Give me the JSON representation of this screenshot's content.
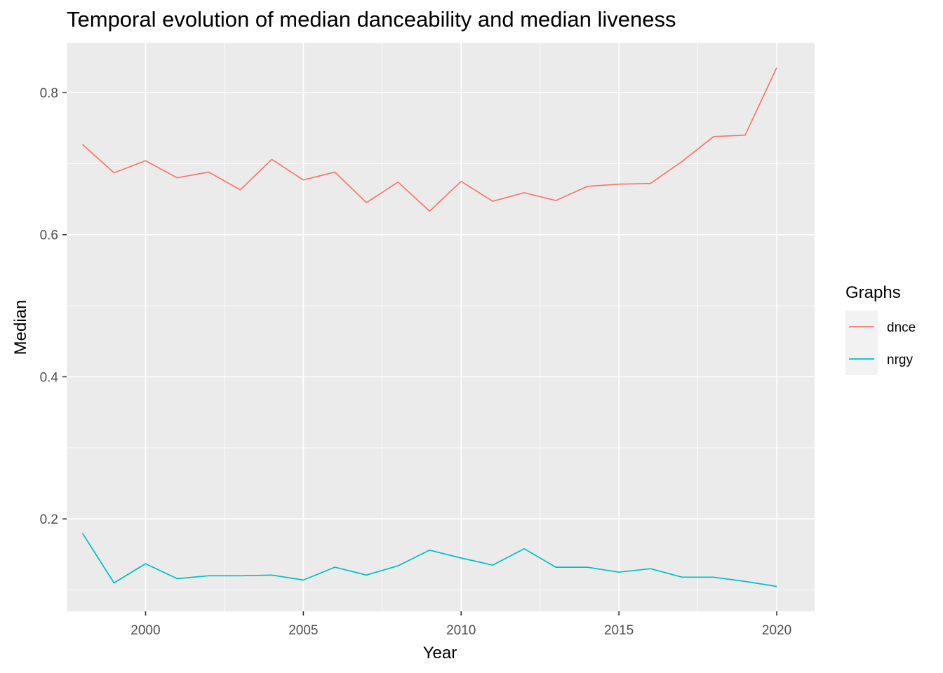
{
  "chart_data": {
    "type": "line",
    "title": "Temporal evolution of median danceability and median liveness",
    "xlabel": "Year",
    "ylabel": "Median",
    "xlim": [
      1997.5,
      2021.2
    ],
    "ylim": [
      0.07,
      0.87
    ],
    "x_major_ticks": [
      2000,
      2005,
      2010,
      2015,
      2020
    ],
    "x_minor_ticks": [
      1997.5,
      2002.5,
      2007.5,
      2012.5,
      2017.5
    ],
    "y_major_ticks": [
      0.2,
      0.4,
      0.6,
      0.8
    ],
    "y_minor_ticks": [
      0.1,
      0.3,
      0.5,
      0.7
    ],
    "x_tick_labels": [
      "2000",
      "2005",
      "2010",
      "2015",
      "2020"
    ],
    "y_tick_labels": [
      "0.2",
      "0.4",
      "0.6",
      "0.8"
    ],
    "grid": true,
    "legend_position": "right",
    "legend_title": "Graphs",
    "x": [
      1998,
      1999,
      2000,
      2001,
      2002,
      2003,
      2004,
      2005,
      2006,
      2007,
      2008,
      2009,
      2010,
      2011,
      2012,
      2013,
      2014,
      2015,
      2016,
      2017,
      2018,
      2019,
      2020
    ],
    "series": [
      {
        "name": "dnce",
        "color": "#F8766D",
        "values": [
          0.727,
          0.687,
          0.704,
          0.68,
          0.688,
          0.663,
          0.706,
          0.677,
          0.688,
          0.645,
          0.674,
          0.633,
          0.675,
          0.647,
          0.659,
          0.648,
          0.668,
          0.671,
          0.672,
          0.703,
          0.738,
          0.74,
          0.835
        ]
      },
      {
        "name": "nrgy",
        "color": "#00BFC4",
        "values": [
          0.18,
          0.11,
          0.137,
          0.116,
          0.12,
          0.12,
          0.121,
          0.114,
          0.132,
          0.121,
          0.134,
          0.156,
          0.145,
          0.135,
          0.158,
          0.132,
          0.132,
          0.125,
          0.13,
          0.118,
          0.118,
          0.112,
          0.105
        ]
      }
    ]
  }
}
